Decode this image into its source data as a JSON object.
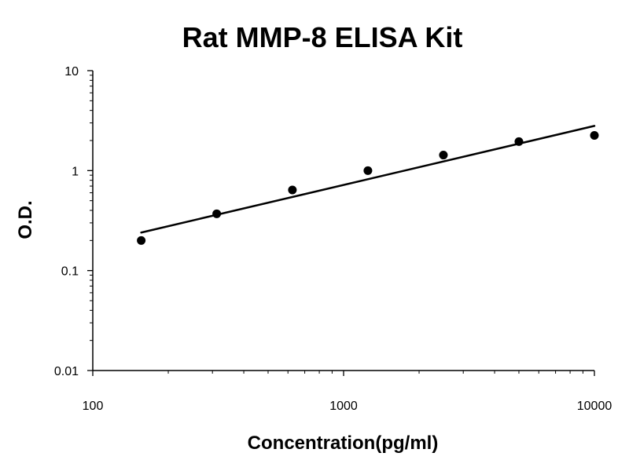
{
  "chart_data": {
    "type": "scatter",
    "title": "Rat MMP-8 ELISA Kit",
    "xlabel": "Concentration(pg/ml)",
    "ylabel": "O.D.",
    "x_scale": "log",
    "y_scale": "log",
    "xlim": [
      100,
      10000
    ],
    "ylim": [
      0.01,
      10
    ],
    "x_ticks": [
      {
        "value": 100,
        "label": "100"
      },
      {
        "value": 1000,
        "label": "1000"
      },
      {
        "value": 10000,
        "label": "10000"
      }
    ],
    "y_ticks": [
      {
        "value": 10,
        "label": "10"
      },
      {
        "value": 1,
        "label": "1"
      },
      {
        "value": 0.1,
        "label": "0.1"
      },
      {
        "value": 0.01,
        "label": "0.01"
      }
    ],
    "grid": false,
    "points": [
      {
        "x": 156,
        "y": 0.2
      },
      {
        "x": 312,
        "y": 0.37
      },
      {
        "x": 625,
        "y": 0.64
      },
      {
        "x": 1250,
        "y": 1.0
      },
      {
        "x": 2500,
        "y": 1.43
      },
      {
        "x": 5000,
        "y": 1.95
      },
      {
        "x": 10000,
        "y": 2.25
      }
    ],
    "trendline": {
      "type": "power",
      "from": {
        "x": 156,
        "y": 0.24
      },
      "to": {
        "x": 10000,
        "y": 2.8
      }
    },
    "colors": {
      "points": "#000000",
      "line": "#000000",
      "axes": "#000000"
    }
  }
}
